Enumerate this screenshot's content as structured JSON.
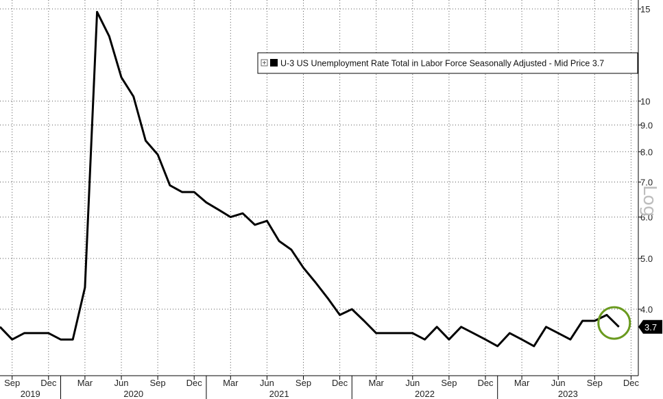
{
  "chart_data": {
    "type": "line",
    "scale": "log",
    "scale_label": "Log",
    "ylim": [
      3.2,
      15.3
    ],
    "y_ticks": [
      "4.0",
      "5.0",
      "6.0",
      "7.0",
      "8.0",
      "9.0",
      "10",
      "15"
    ],
    "grid": true,
    "x_tick_labels": [
      "Sep",
      "Dec",
      "Mar",
      "Jun",
      "Sep",
      "Dec",
      "Mar",
      "Jun",
      "Sep",
      "Dec",
      "Mar",
      "Jun",
      "Sep",
      "Dec",
      "Mar",
      "Jun",
      "Sep",
      "Dec"
    ],
    "x_year_labels": [
      "2019",
      "2020",
      "2021",
      "2022",
      "2023"
    ],
    "legend": {
      "label": "U-3 US Unemployment Rate Total in Labor Force Seasonally Adjusted - Mid Price 3.7",
      "position": "top-right",
      "color": "#000000"
    },
    "last_value_label": "3.7",
    "highlight_color": "#6a9a1f",
    "series": [
      {
        "color": "#000000",
        "x": [
          "2019-08",
          "2019-09",
          "2019-10",
          "2019-11",
          "2019-12",
          "2020-01",
          "2020-02",
          "2020-03",
          "2020-04",
          "2020-05",
          "2020-06",
          "2020-07",
          "2020-08",
          "2020-09",
          "2020-10",
          "2020-11",
          "2020-12",
          "2021-01",
          "2021-02",
          "2021-03",
          "2021-04",
          "2021-05",
          "2021-06",
          "2021-07",
          "2021-08",
          "2021-09",
          "2021-10",
          "2021-11",
          "2021-12",
          "2022-01",
          "2022-02",
          "2022-03",
          "2022-04",
          "2022-05",
          "2022-06",
          "2022-07",
          "2022-08",
          "2022-09",
          "2022-10",
          "2022-11",
          "2022-12",
          "2023-01",
          "2023-02",
          "2023-03",
          "2023-04",
          "2023-05",
          "2023-06",
          "2023-07",
          "2023-08",
          "2023-09",
          "2023-10",
          "2023-11"
        ],
        "values": [
          3.7,
          3.5,
          3.6,
          3.6,
          3.6,
          3.5,
          3.5,
          4.4,
          14.8,
          13.3,
          11.1,
          10.2,
          8.4,
          7.9,
          6.9,
          6.7,
          6.7,
          6.4,
          6.2,
          6.0,
          6.1,
          5.8,
          5.9,
          5.4,
          5.2,
          4.8,
          4.5,
          4.2,
          3.9,
          4.0,
          3.8,
          3.6,
          3.6,
          3.6,
          3.6,
          3.5,
          3.7,
          3.5,
          3.7,
          3.6,
          3.5,
          3.4,
          3.6,
          3.5,
          3.4,
          3.7,
          3.6,
          3.5,
          3.8,
          3.8,
          3.9,
          3.7
        ]
      }
    ]
  }
}
